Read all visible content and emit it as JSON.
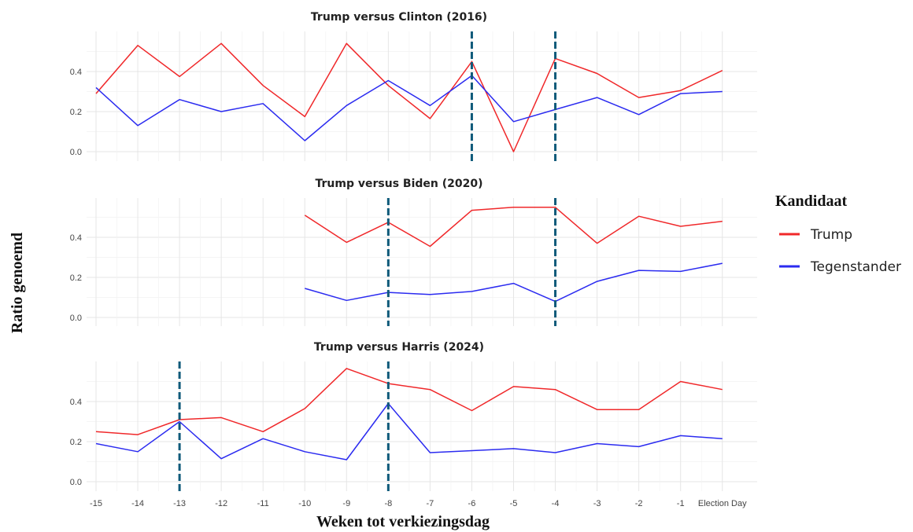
{
  "chart_data": {
    "type": "line",
    "xlabel": "Weken tot verkiezingsdag",
    "ylabel": "Ratio genoemd",
    "x_categories": [
      "-15",
      "-14",
      "-13",
      "-12",
      "-11",
      "-10",
      "-9",
      "-8",
      "-7",
      "-6",
      "-5",
      "-4",
      "-3",
      "-2",
      "-1",
      "Election Day"
    ],
    "yticks": [
      0.0,
      0.2,
      0.4
    ],
    "ytick_labels": [
      "0.0",
      "0.2",
      "0.4"
    ],
    "ylim": [
      0,
      0.58
    ],
    "grid": true,
    "legend": {
      "title": "Kandidaat",
      "placement": "right",
      "entries": [
        {
          "label": "Trump",
          "color": "#f0282a"
        },
        {
          "label": "Tegenstander",
          "color": "#2b2bf0"
        }
      ]
    },
    "marker_color": "#0f5a7a",
    "panels": [
      {
        "title": "Trump versus Clinton (2016)",
        "vlines": [
          "-6",
          "-4"
        ],
        "series": [
          {
            "name": "Trump",
            "color": "#f0282a",
            "values": [
              0.29,
              0.53,
              0.375,
              0.54,
              0.33,
              0.175,
              0.54,
              0.33,
              0.165,
              0.45,
              0.0,
              0.465,
              0.39,
              0.27,
              0.305,
              0.405
            ]
          },
          {
            "name": "Tegenstander",
            "color": "#2b2bf0",
            "values": [
              0.32,
              0.13,
              0.26,
              0.2,
              0.24,
              0.055,
              0.23,
              0.355,
              0.23,
              0.38,
              0.15,
              0.21,
              0.27,
              0.185,
              0.29,
              0.3
            ]
          }
        ]
      },
      {
        "title": "Trump versus Biden (2020)",
        "vlines": [
          "-8",
          "-4"
        ],
        "series": [
          {
            "name": "Trump",
            "color": "#f0282a",
            "values": [
              null,
              null,
              null,
              null,
              null,
              0.51,
              0.375,
              0.475,
              0.355,
              0.535,
              0.55,
              0.55,
              0.37,
              0.505,
              0.455,
              0.48
            ]
          },
          {
            "name": "Tegenstander",
            "color": "#2b2bf0",
            "values": [
              null,
              null,
              null,
              null,
              null,
              0.145,
              0.085,
              0.125,
              0.115,
              0.13,
              0.17,
              0.08,
              0.18,
              0.235,
              0.23,
              0.27
            ]
          }
        ]
      },
      {
        "title": "Trump versus Harris (2024)",
        "vlines": [
          "-13",
          "-8"
        ],
        "series": [
          {
            "name": "Trump",
            "color": "#f0282a",
            "values": [
              0.25,
              0.235,
              0.31,
              0.32,
              0.25,
              0.365,
              0.565,
              0.49,
              0.46,
              0.355,
              0.475,
              0.46,
              0.36,
              0.36,
              0.5,
              0.46
            ]
          },
          {
            "name": "Tegenstander",
            "color": "#2b2bf0",
            "values": [
              0.19,
              0.15,
              0.3,
              0.115,
              0.215,
              0.15,
              0.11,
              0.39,
              0.145,
              0.155,
              0.165,
              0.145,
              0.19,
              0.175,
              0.23,
              0.215
            ]
          }
        ]
      }
    ]
  }
}
